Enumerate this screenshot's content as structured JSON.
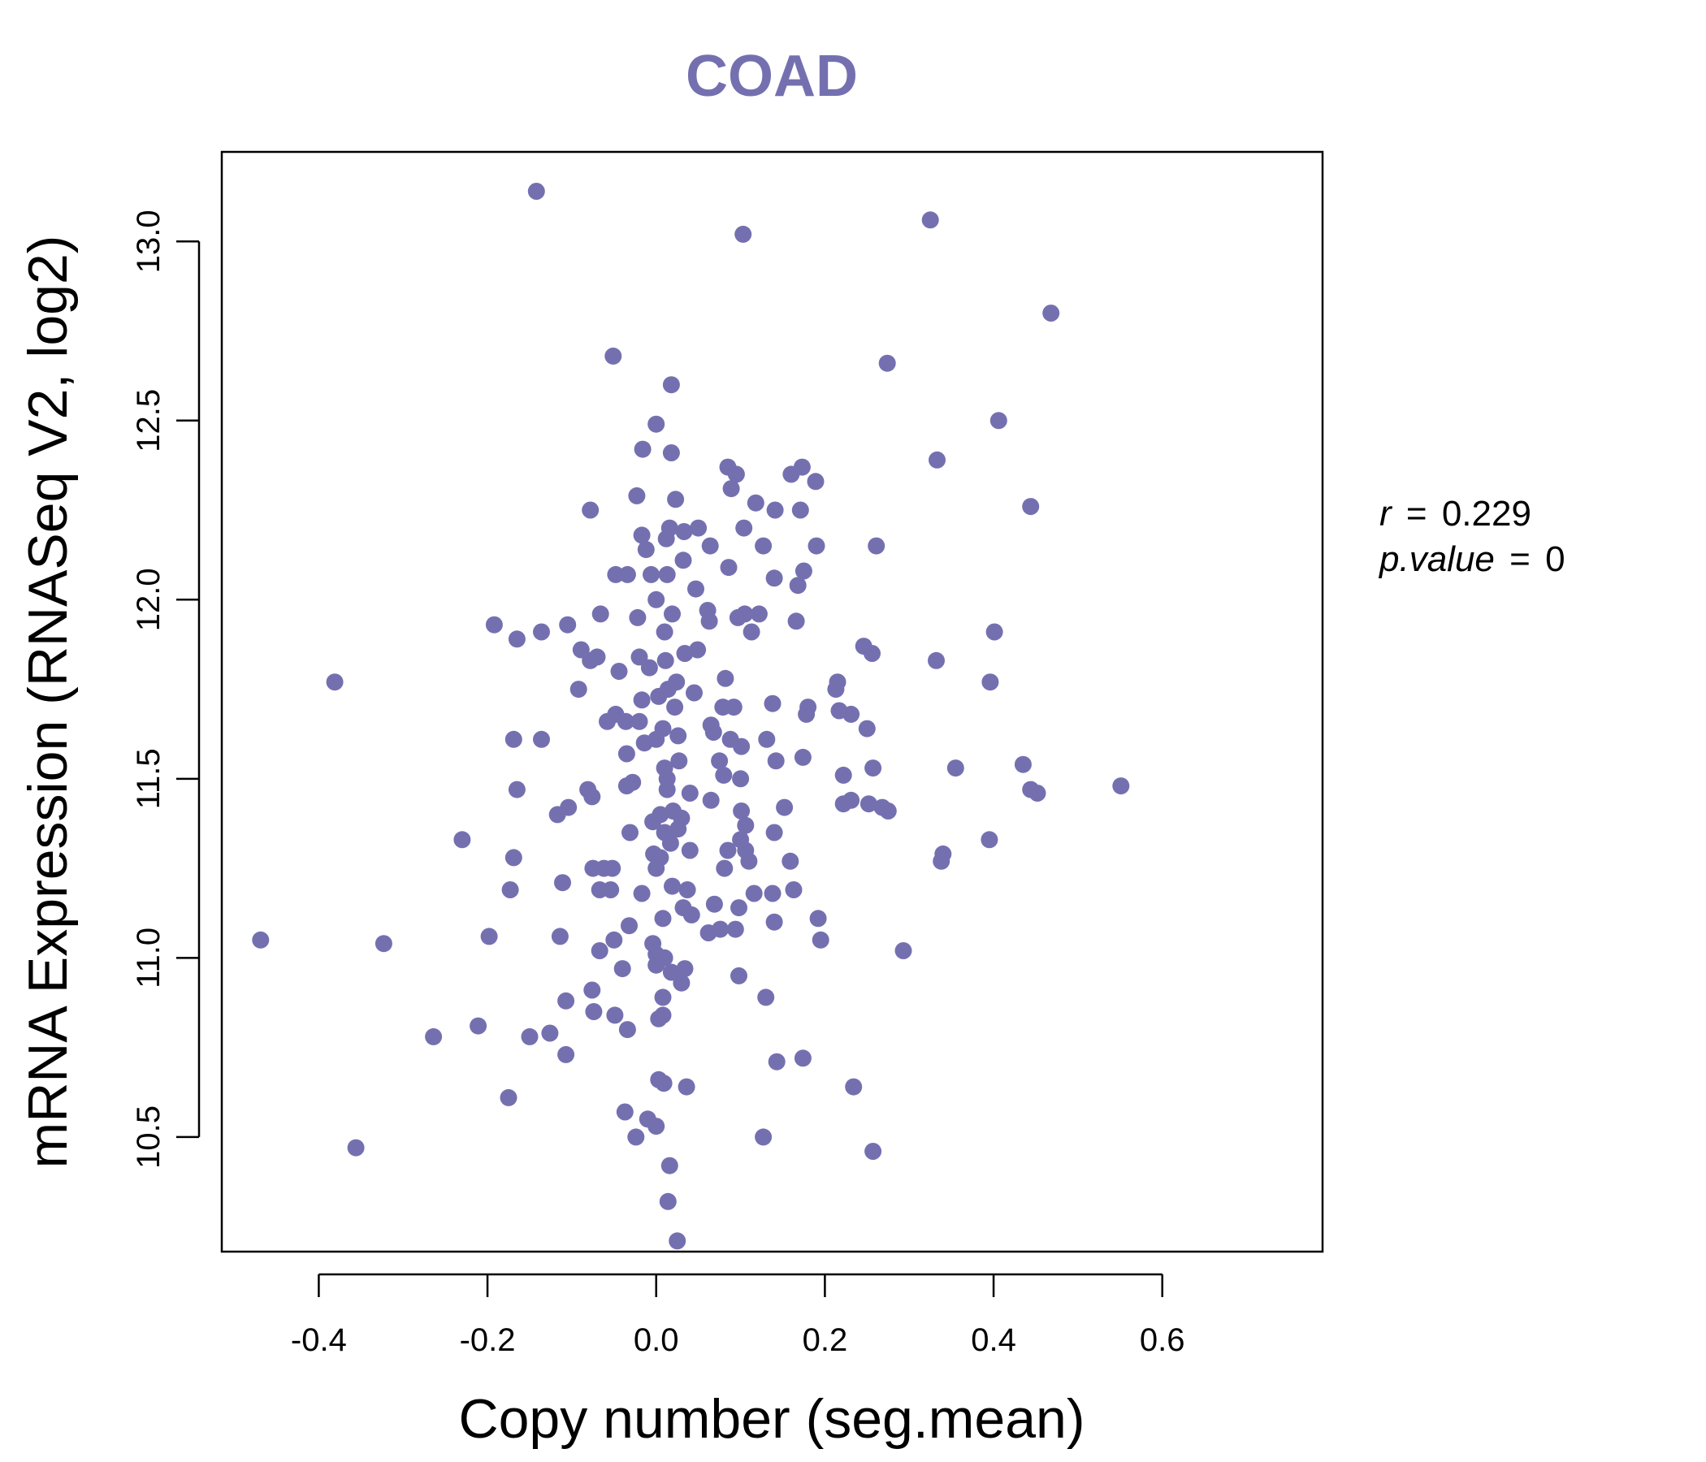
{
  "chart_data": {
    "type": "scatter",
    "title": "COAD",
    "xlabel": "Copy number (seg.mean)",
    "ylabel": "mRNA Expression (RNASeq V2, log2)",
    "xlim": [
      -0.515,
      0.79
    ],
    "ylim": [
      10.18,
      13.25
    ],
    "x_ticks": [
      -0.4,
      -0.2,
      0.0,
      0.2,
      0.4,
      0.6
    ],
    "x_tick_labels": [
      "-0.4",
      "-0.2",
      "0.0",
      "0.2",
      "0.4",
      "0.6"
    ],
    "y_ticks": [
      10.5,
      11.0,
      11.5,
      12.0,
      12.5,
      13.0
    ],
    "y_tick_labels": [
      "10.5",
      "11.0",
      "11.5",
      "12.0",
      "12.5",
      "13.0"
    ],
    "stats": {
      "r_symbol": "r",
      "r_value": "0.229",
      "p_symbol": "p.value",
      "p_value": "0"
    },
    "colors": {
      "point": "#7470b0",
      "title": "#7470b0",
      "axis": "#000000"
    },
    "points": [
      [
        -0.142,
        13.14
      ],
      [
        0.103,
        13.02
      ],
      [
        0.325,
        13.06
      ],
      [
        0.468,
        12.8
      ],
      [
        -0.051,
        12.68
      ],
      [
        0.274,
        12.66
      ],
      [
        0.018,
        12.6
      ],
      [
        0.406,
        12.5
      ],
      [
        0.0,
        12.49
      ],
      [
        -0.016,
        12.42
      ],
      [
        0.018,
        12.41
      ],
      [
        0.333,
        12.39
      ],
      [
        0.085,
        12.37
      ],
      [
        0.095,
        12.35
      ],
      [
        0.173,
        12.37
      ],
      [
        0.16,
        12.35
      ],
      [
        0.189,
        12.33
      ],
      [
        0.089,
        12.31
      ],
      [
        -0.023,
        12.29
      ],
      [
        0.023,
        12.28
      ],
      [
        0.118,
        12.27
      ],
      [
        0.444,
        12.26
      ],
      [
        -0.078,
        12.25
      ],
      [
        0.141,
        12.25
      ],
      [
        0.171,
        12.25
      ],
      [
        0.016,
        12.2
      ],
      [
        0.05,
        12.2
      ],
      [
        0.104,
        12.2
      ],
      [
        0.033,
        12.19
      ],
      [
        -0.017,
        12.18
      ],
      [
        0.012,
        12.17
      ],
      [
        0.064,
        12.15
      ],
      [
        0.127,
        12.15
      ],
      [
        0.19,
        12.15
      ],
      [
        0.261,
        12.15
      ],
      [
        -0.012,
        12.14
      ],
      [
        0.032,
        12.11
      ],
      [
        0.086,
        12.09
      ],
      [
        0.175,
        12.08
      ],
      [
        -0.048,
        12.07
      ],
      [
        -0.034,
        12.07
      ],
      [
        -0.006,
        12.07
      ],
      [
        0.013,
        12.07
      ],
      [
        0.14,
        12.06
      ],
      [
        0.168,
        12.04
      ],
      [
        0.047,
        12.03
      ],
      [
        0.0,
        12.0
      ],
      [
        -0.066,
        11.96
      ],
      [
        0.019,
        11.96
      ],
      [
        -0.022,
        11.95
      ],
      [
        0.061,
        11.97
      ],
      [
        0.097,
        11.95
      ],
      [
        0.105,
        11.96
      ],
      [
        0.122,
        11.96
      ],
      [
        0.166,
        11.94
      ],
      [
        -0.192,
        11.93
      ],
      [
        -0.105,
        11.93
      ],
      [
        0.063,
        11.94
      ],
      [
        -0.136,
        11.91
      ],
      [
        0.01,
        11.91
      ],
      [
        0.113,
        11.91
      ],
      [
        0.401,
        11.91
      ],
      [
        -0.165,
        11.89
      ],
      [
        0.246,
        11.87
      ],
      [
        -0.089,
        11.86
      ],
      [
        0.049,
        11.86
      ],
      [
        0.256,
        11.85
      ],
      [
        -0.02,
        11.84
      ],
      [
        -0.07,
        11.84
      ],
      [
        0.034,
        11.85
      ],
      [
        -0.078,
        11.83
      ],
      [
        0.011,
        11.83
      ],
      [
        0.332,
        11.83
      ],
      [
        -0.008,
        11.81
      ],
      [
        -0.044,
        11.8
      ],
      [
        0.082,
        11.78
      ],
      [
        0.024,
        11.77
      ],
      [
        0.215,
        11.77
      ],
      [
        0.396,
        11.77
      ],
      [
        -0.381,
        11.77
      ],
      [
        -0.092,
        11.75
      ],
      [
        0.014,
        11.75
      ],
      [
        0.213,
        11.75
      ],
      [
        0.045,
        11.74
      ],
      [
        -0.017,
        11.72
      ],
      [
        0.003,
        11.73
      ],
      [
        0.138,
        11.71
      ],
      [
        0.022,
        11.7
      ],
      [
        0.079,
        11.7
      ],
      [
        0.092,
        11.7
      ],
      [
        0.18,
        11.7
      ],
      [
        0.217,
        11.69
      ],
      [
        0.231,
        11.68
      ],
      [
        -0.048,
        11.68
      ],
      [
        -0.02,
        11.66
      ],
      [
        -0.036,
        11.66
      ],
      [
        0.178,
        11.68
      ],
      [
        0.065,
        11.65
      ],
      [
        -0.058,
        11.66
      ],
      [
        0.008,
        11.64
      ],
      [
        0.068,
        11.63
      ],
      [
        0.25,
        11.64
      ],
      [
        -0.136,
        11.61
      ],
      [
        -0.169,
        11.61
      ],
      [
        0.026,
        11.62
      ],
      [
        0.088,
        11.61
      ],
      [
        0.101,
        11.59
      ],
      [
        0.131,
        11.61
      ],
      [
        -0.014,
        11.6
      ],
      [
        0.0,
        11.61
      ],
      [
        -0.035,
        11.57
      ],
      [
        0.075,
        11.55
      ],
      [
        0.174,
        11.56
      ],
      [
        0.027,
        11.55
      ],
      [
        0.142,
        11.55
      ],
      [
        0.01,
        11.53
      ],
      [
        0.355,
        11.53
      ],
      [
        0.257,
        11.53
      ],
      [
        0.435,
        11.54
      ],
      [
        -0.028,
        11.49
      ],
      [
        0.013,
        11.5
      ],
      [
        0.08,
        11.51
      ],
      [
        0.1,
        11.5
      ],
      [
        0.222,
        11.51
      ],
      [
        -0.165,
        11.47
      ],
      [
        -0.081,
        11.47
      ],
      [
        -0.035,
        11.48
      ],
      [
        0.013,
        11.47
      ],
      [
        0.04,
        11.46
      ],
      [
        0.551,
        11.48
      ],
      [
        -0.076,
        11.45
      ],
      [
        0.065,
        11.44
      ],
      [
        0.444,
        11.47
      ],
      [
        0.452,
        11.46
      ],
      [
        0.231,
        11.44
      ],
      [
        0.252,
        11.43
      ],
      [
        -0.104,
        11.42
      ],
      [
        -0.117,
        11.4
      ],
      [
        0.101,
        11.41
      ],
      [
        0.152,
        11.42
      ],
      [
        0.222,
        11.43
      ],
      [
        0.268,
        11.42
      ],
      [
        0.275,
        11.41
      ],
      [
        0.005,
        11.4
      ],
      [
        0.02,
        11.41
      ],
      [
        0.03,
        11.39
      ],
      [
        -0.004,
        11.38
      ],
      [
        0.026,
        11.36
      ],
      [
        0.106,
        11.37
      ],
      [
        0.01,
        11.35
      ],
      [
        0.14,
        11.35
      ],
      [
        -0.031,
        11.35
      ],
      [
        -0.23,
        11.33
      ],
      [
        0.1,
        11.33
      ],
      [
        0.395,
        11.33
      ],
      [
        0.017,
        11.32
      ],
      [
        0.085,
        11.3
      ],
      [
        0.04,
        11.3
      ],
      [
        0.106,
        11.3
      ],
      [
        -0.003,
        11.29
      ],
      [
        -0.169,
        11.28
      ],
      [
        0.34,
        11.29
      ],
      [
        0.338,
        11.27
      ],
      [
        0.005,
        11.28
      ],
      [
        0.11,
        11.27
      ],
      [
        0.159,
        11.27
      ],
      [
        0.081,
        11.25
      ],
      [
        -0.075,
        11.25
      ],
      [
        -0.062,
        11.25
      ],
      [
        0.0,
        11.25
      ],
      [
        -0.052,
        11.25
      ],
      [
        -0.111,
        11.21
      ],
      [
        -0.067,
        11.19
      ],
      [
        -0.054,
        11.19
      ],
      [
        -0.173,
        11.19
      ],
      [
        -0.017,
        11.18
      ],
      [
        0.019,
        11.2
      ],
      [
        0.037,
        11.19
      ],
      [
        0.116,
        11.18
      ],
      [
        0.138,
        11.18
      ],
      [
        0.163,
        11.19
      ],
      [
        0.069,
        11.15
      ],
      [
        0.098,
        11.14
      ],
      [
        0.032,
        11.14
      ],
      [
        0.042,
        11.12
      ],
      [
        0.008,
        11.11
      ],
      [
        0.192,
        11.11
      ],
      [
        0.14,
        11.1
      ],
      [
        -0.032,
        11.09
      ],
      [
        0.076,
        11.08
      ],
      [
        0.094,
        11.08
      ],
      [
        0.062,
        11.07
      ],
      [
        -0.198,
        11.06
      ],
      [
        -0.114,
        11.06
      ],
      [
        -0.05,
        11.05
      ],
      [
        0.195,
        11.05
      ],
      [
        -0.469,
        11.05
      ],
      [
        -0.004,
        11.04
      ],
      [
        -0.323,
        11.04
      ],
      [
        -0.067,
        11.02
      ],
      [
        0.293,
        11.02
      ],
      [
        0.0,
        11.01
      ],
      [
        0.01,
        11.0
      ],
      [
        0.0,
        10.98
      ],
      [
        -0.04,
        10.97
      ],
      [
        0.034,
        10.97
      ],
      [
        0.018,
        10.96
      ],
      [
        0.03,
        10.93
      ],
      [
        0.098,
        10.95
      ],
      [
        -0.076,
        10.91
      ],
      [
        0.008,
        10.89
      ],
      [
        0.13,
        10.89
      ],
      [
        -0.107,
        10.88
      ],
      [
        -0.074,
        10.85
      ],
      [
        -0.049,
        10.84
      ],
      [
        0.008,
        10.84
      ],
      [
        0.003,
        10.83
      ],
      [
        -0.211,
        10.81
      ],
      [
        -0.034,
        10.8
      ],
      [
        -0.264,
        10.78
      ],
      [
        -0.15,
        10.78
      ],
      [
        -0.126,
        10.79
      ],
      [
        -0.107,
        10.73
      ],
      [
        0.143,
        10.71
      ],
      [
        0.174,
        10.72
      ],
      [
        0.003,
        10.66
      ],
      [
        0.009,
        10.65
      ],
      [
        0.036,
        10.64
      ],
      [
        0.234,
        10.64
      ],
      [
        -0.175,
        10.61
      ],
      [
        -0.037,
        10.57
      ],
      [
        -0.01,
        10.55
      ],
      [
        0.0,
        10.53
      ],
      [
        -0.024,
        10.5
      ],
      [
        0.127,
        10.5
      ],
      [
        -0.356,
        10.47
      ],
      [
        0.257,
        10.46
      ],
      [
        0.016,
        10.42
      ],
      [
        0.014,
        10.32
      ],
      [
        0.025,
        10.21
      ]
    ]
  }
}
